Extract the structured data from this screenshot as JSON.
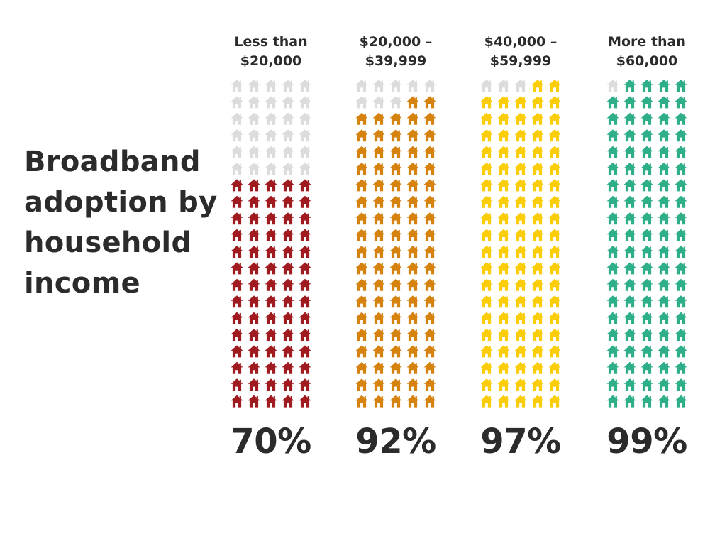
{
  "title": "Broadband adoption by household income",
  "chart_data": {
    "type": "pictogram",
    "unit_note": "each column is a 5x20 grid of house icons; filled share equals the percent value",
    "grid": {
      "columns": 5,
      "rows": 20
    },
    "empty_color": "#dcdcdc",
    "categories": [
      {
        "label_lines": [
          "Less than",
          "$20,000"
        ],
        "value": 70,
        "display": "70%",
        "color": "#a01b1f"
      },
      {
        "label_lines": [
          "$20,000 –",
          "$39,999"
        ],
        "value": 92,
        "display": "92%",
        "color": "#d6820f"
      },
      {
        "label_lines": [
          "$40,000 –",
          "$59,999"
        ],
        "value": 97,
        "display": "97%",
        "color": "#fbcd06"
      },
      {
        "label_lines": [
          "More than",
          "$60,000"
        ],
        "value": 99,
        "display": "99%",
        "color": "#2fae8a"
      }
    ]
  }
}
